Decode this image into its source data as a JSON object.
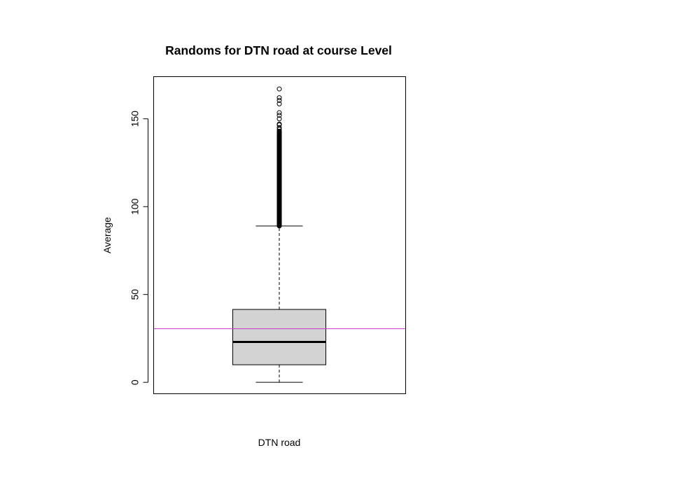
{
  "chart_data": {
    "type": "boxplot",
    "title": "Randoms for DTN road at course Level",
    "xlabel": "DTN road",
    "ylabel": "Average",
    "ylim": [
      -6.5,
      174
    ],
    "yticks": [
      0,
      50,
      100,
      150
    ],
    "box": {
      "category": "DTN road",
      "min": 0,
      "q1": 10,
      "median": 23,
      "q3": 41.5,
      "max": 89,
      "outliers_dense_range": [
        89,
        143
      ],
      "outliers": [
        144,
        145,
        146.5,
        147,
        150,
        152,
        153.5,
        158.5,
        160.5,
        162,
        167
      ]
    },
    "reference_line": {
      "y": 30.5,
      "color": "#cc33cc"
    },
    "colors": {
      "box_fill": "#d3d3d3",
      "stroke": "#000000"
    },
    "grid": false,
    "legend": "none"
  }
}
